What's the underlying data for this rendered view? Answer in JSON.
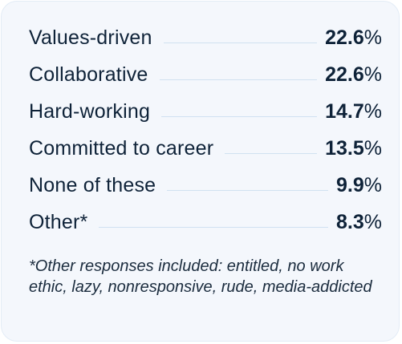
{
  "chart_data": {
    "type": "table",
    "categories": [
      "Values-driven",
      "Collaborative",
      "Hard-working",
      "Committed to career",
      "None of these",
      "Other*"
    ],
    "values": [
      22.6,
      22.6,
      14.7,
      13.5,
      9.9,
      8.3
    ],
    "value_labels": [
      "22.6",
      "22.6",
      "14.7",
      "13.5",
      "9.9",
      "8.3"
    ],
    "unit": "%"
  },
  "footnote": "*Other responses included: entitled, no work ethic, lazy, nonresponsive, rude, media-addicted",
  "colors": {
    "card_background": "#f4f7fc",
    "text": "#0e2238",
    "leader_line": "#d0e1f1"
  }
}
